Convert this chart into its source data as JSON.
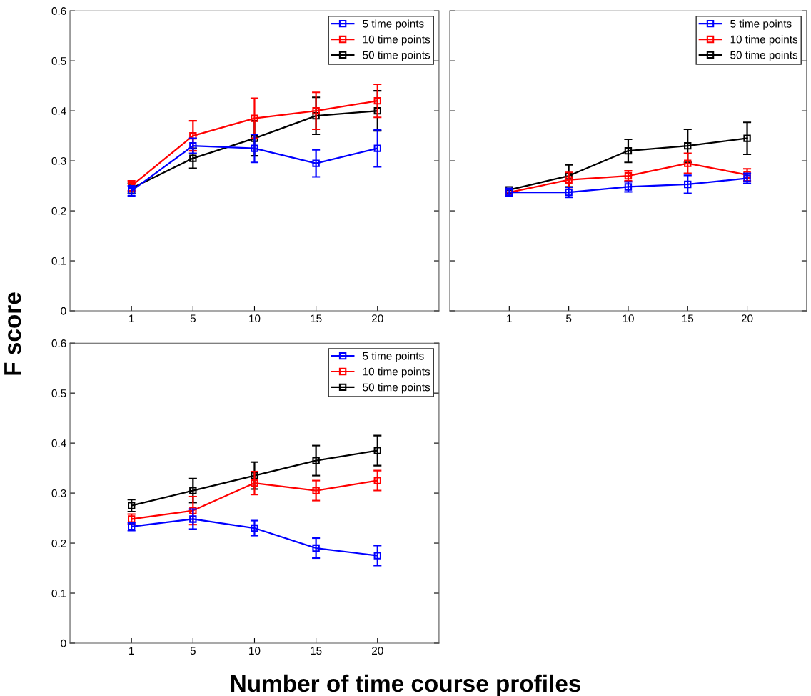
{
  "chart_data": [
    {
      "type": "line",
      "ylabel": "F score",
      "categories": [
        "1",
        "5",
        "10",
        "15",
        "20"
      ],
      "ylim": [
        0,
        0.6
      ],
      "yticks": [
        0,
        0.1,
        0.2,
        0.3,
        0.4,
        0.5,
        0.6
      ],
      "marker": "square",
      "legend": "top right",
      "grid": false,
      "series": [
        {
          "name": "5 time points",
          "color": "#0000ff",
          "values": [
            0.24,
            0.33,
            0.325,
            0.295,
            0.325
          ],
          "errors": [
            0.01,
            0.015,
            0.028,
            0.027,
            0.037
          ]
        },
        {
          "name": "10 time points",
          "color": "#ff0000",
          "values": [
            0.25,
            0.35,
            0.385,
            0.4,
            0.42
          ],
          "errors": [
            0.01,
            0.03,
            0.04,
            0.037,
            0.033
          ]
        },
        {
          "name": "50 time points",
          "color": "#000000",
          "values": [
            0.245,
            0.305,
            0.345,
            0.39,
            0.4
          ],
          "errors": [
            0.01,
            0.02,
            0.035,
            0.037,
            0.04
          ]
        }
      ]
    },
    {
      "type": "line",
      "categories": [
        "1",
        "5",
        "10",
        "15",
        "20"
      ],
      "ylim": [
        0,
        0.6
      ],
      "yticks": [
        0,
        0.1,
        0.2,
        0.3,
        0.4,
        0.5,
        0.6
      ],
      "tick_labels": "x",
      "marker": "square",
      "legend": "top right",
      "grid": false,
      "series": [
        {
          "name": "5 time points",
          "color": "#0000ff",
          "values": [
            0.237,
            0.237,
            0.248,
            0.253,
            0.265
          ],
          "errors": [
            0.008,
            0.01,
            0.01,
            0.018,
            0.01
          ]
        },
        {
          "name": "10 time points",
          "color": "#ff0000",
          "values": [
            0.237,
            0.262,
            0.27,
            0.295,
            0.272
          ],
          "errors": [
            null,
            0.015,
            0.01,
            0.02,
            0.012
          ]
        },
        {
          "name": "50 time points",
          "color": "#000000",
          "values": [
            0.242,
            0.27,
            0.32,
            0.33,
            0.345
          ],
          "errors": [
            null,
            0.022,
            0.023,
            0.033,
            0.032
          ]
        }
      ]
    },
    {
      "type": "line",
      "xlabel": "Number of time course profiles",
      "categories": [
        "1",
        "5",
        "10",
        "15",
        "20"
      ],
      "ylim": [
        0,
        0.6
      ],
      "yticks": [
        0,
        0.1,
        0.2,
        0.3,
        0.4,
        0.5,
        0.6
      ],
      "marker": "square",
      "legend": "top right",
      "grid": false,
      "series": [
        {
          "name": "5 time points",
          "color": "#0000ff",
          "values": [
            0.233,
            0.248,
            0.23,
            0.19,
            0.175
          ],
          "errors": [
            0.008,
            0.02,
            0.015,
            0.02,
            0.02
          ]
        },
        {
          "name": "10 time points",
          "color": "#ff0000",
          "values": [
            0.248,
            0.265,
            0.32,
            0.305,
            0.325
          ],
          "errors": [
            0.01,
            0.028,
            0.023,
            0.02,
            0.02
          ]
        },
        {
          "name": "50 time points",
          "color": "#000000",
          "values": [
            0.275,
            0.305,
            0.335,
            0.365,
            0.385
          ],
          "errors": [
            0.012,
            0.024,
            0.027,
            0.03,
            0.03
          ]
        }
      ]
    }
  ]
}
